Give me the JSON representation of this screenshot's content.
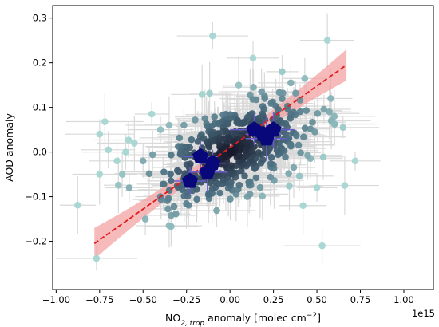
{
  "chart_data": {
    "type": "scatter",
    "xlabel": "NO",
    "xlabel_sub": "2, trop",
    "xlabel_rest": " anomaly [molec cm",
    "xlabel_sup": "−2",
    "xlabel_close": "]",
    "ylabel": "AOD anomaly",
    "x_offset_label": "1e15",
    "xlim": [
      -1.02,
      1.17
    ],
    "ylim": [
      -0.308,
      0.328
    ],
    "x_ticks": [
      -1.0,
      -0.75,
      -0.5,
      -0.25,
      0.0,
      0.25,
      0.5,
      0.75,
      1.0
    ],
    "x_tick_labels": [
      "−1.00",
      "−0.75",
      "−0.50",
      "−0.25",
      "0.00",
      "0.25",
      "0.50",
      "0.75",
      "1.00"
    ],
    "y_ticks": [
      -0.2,
      -0.1,
      0.0,
      0.1,
      0.2,
      0.3
    ],
    "y_tick_labels": [
      "−0.2",
      "−0.1",
      "0.0",
      "0.1",
      "0.2",
      "0.3"
    ],
    "grid": false,
    "colors": {
      "scatter_outer": "#a6d6d2",
      "scatter_inner": "#161629",
      "errorbar": "#d9d9d9",
      "binned_marker": "#08087a",
      "binned_errorbar": "#6a5acd",
      "fit_line": "#e31a1c",
      "fit_band": "#f4a3a3"
    },
    "fit_line": {
      "x": [
        -0.78,
        0.67
      ],
      "y": [
        -0.205,
        0.195
      ],
      "band_half_width_at_ends": 0.035,
      "band_half_width_at_center": 0.012
    },
    "binned_points": [
      {
        "x": -0.23,
        "y": -0.065,
        "xerr": 0.09,
        "yerr": 0.03
      },
      {
        "x": -0.13,
        "y": -0.045,
        "xerr": 0.11,
        "yerr": 0.045
      },
      {
        "x": -0.17,
        "y": -0.01,
        "xerr": 0.1,
        "yerr": 0.035
      },
      {
        "x": -0.1,
        "y": -0.025,
        "xerr": 0.08,
        "yerr": 0.03
      },
      {
        "x": 0.14,
        "y": 0.05,
        "xerr": 0.14,
        "yerr": 0.035
      },
      {
        "x": 0.25,
        "y": 0.05,
        "xerr": 0.12,
        "yerr": 0.04
      },
      {
        "x": 0.19,
        "y": 0.04,
        "xerr": 0.1,
        "yerr": 0.03
      },
      {
        "x": 0.21,
        "y": 0.03,
        "xerr": 0.12,
        "yerr": 0.05
      }
    ],
    "scatter_outliers": [
      [
        -0.72,
        0.068
      ],
      [
        -0.75,
        0.04
      ],
      [
        -0.7,
        0.005
      ],
      [
        -0.65,
        -0.02
      ],
      [
        -0.62,
        -0.05
      ],
      [
        -0.58,
        -0.08
      ],
      [
        -0.55,
        0.02
      ],
      [
        -0.6,
        0.0
      ],
      [
        -0.45,
        0.085
      ],
      [
        -0.4,
        -0.1
      ],
      [
        -0.35,
        -0.165
      ],
      [
        -0.4,
        0.05
      ],
      [
        -0.35,
        0.06
      ],
      [
        -0.1,
        0.26
      ],
      [
        0.05,
        0.15
      ],
      [
        0.2,
        0.12
      ],
      [
        0.3,
        0.18
      ],
      [
        0.35,
        0.155
      ],
      [
        0.43,
        0.165
      ],
      [
        0.56,
        0.25
      ],
      [
        0.58,
        0.12
      ],
      [
        0.6,
        0.08
      ],
      [
        0.65,
        0.055
      ],
      [
        0.72,
        -0.02
      ],
      [
        0.66,
        -0.075
      ],
      [
        0.5,
        -0.08
      ],
      [
        0.53,
        -0.21
      ],
      [
        0.42,
        -0.12
      ],
      [
        0.1,
        -0.1
      ],
      [
        -0.5,
        -0.02
      ]
    ]
  }
}
